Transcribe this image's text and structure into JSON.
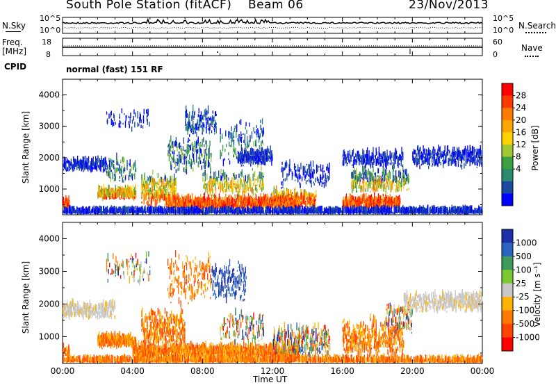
{
  "header": {
    "station": "South Pole Station (fitACF)",
    "beam": "Beam 06",
    "date": "23/Nov/2013"
  },
  "noise_panel": {
    "left_label": "N.Sky",
    "right_label": "N.Search",
    "ticks": [
      "10^5",
      "10^0"
    ]
  },
  "freq_panel": {
    "left_label_1": "Freq.",
    "left_label_2": "[MHz]",
    "left_ticks": [
      "18",
      "8"
    ],
    "right_label": "Nave",
    "right_ticks": [
      "60",
      "0"
    ]
  },
  "cpid": {
    "label": "CPID",
    "mode": "normal (fast) 151 RF"
  },
  "chart_data": [
    {
      "type": "heatmap",
      "name": "power",
      "ylabel": "Slant Range [km]",
      "xlabel": "",
      "y_ticks": [
        1000,
        2000,
        3000,
        4000
      ],
      "ylim": [
        180,
        4500
      ],
      "x_ticks": [
        "00:00",
        "04:00",
        "08:00",
        "12:00",
        "16:00",
        "20:00",
        "00:00"
      ],
      "xlim_hours": [
        0,
        24
      ],
      "colorbar": {
        "label": "Power [dB]",
        "ticks": [
          "28",
          "24",
          "20",
          "16",
          "12",
          "8",
          "4"
        ],
        "colors": [
          "#ff0000",
          "#ff3a00",
          "#ff7a00",
          "#ffa500",
          "#ffd200",
          "#a0c832",
          "#3ca040",
          "#2a8a70",
          "#1a4aa0",
          "#0000ff"
        ]
      }
    },
    {
      "type": "heatmap",
      "name": "velocity",
      "ylabel": "Slant Range [km]",
      "xlabel": "Time UT",
      "y_ticks": [
        1000,
        2000,
        3000,
        4000
      ],
      "ylim": [
        180,
        4500
      ],
      "x_ticks": [
        "00:00",
        "04:00",
        "08:00",
        "12:00",
        "16:00",
        "20:00",
        "00:00"
      ],
      "xlim_hours": [
        0,
        24
      ],
      "colorbar": {
        "label": "Velocity [m s⁻¹]",
        "ticks": [
          "1000",
          "500",
          "100",
          "25",
          "-25",
          "-100",
          "-500",
          "-1000"
        ],
        "colors": [
          "#1d2fa8",
          "#2a63c0",
          "#3c9a5a",
          "#7cc832",
          "#c8c8c8",
          "#ffb400",
          "#ff7800",
          "#ff4500",
          "#ff0000"
        ]
      }
    }
  ]
}
